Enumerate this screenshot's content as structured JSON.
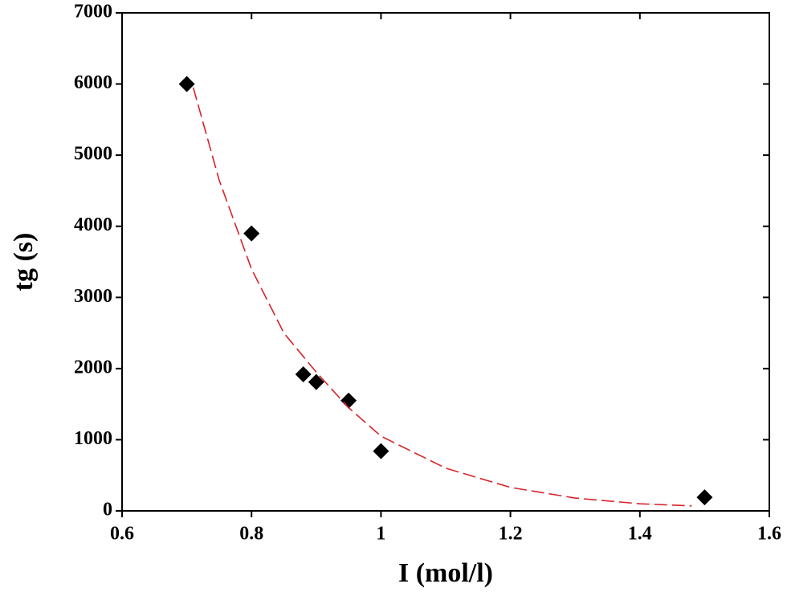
{
  "chart_data": {
    "type": "scatter",
    "xlabel": "I (mol/l)",
    "ylabel": "tg (s)",
    "xlim": [
      0.6,
      1.6
    ],
    "ylim": [
      0,
      7000
    ],
    "xticks": [
      0.6,
      0.8,
      1,
      1.2,
      1.4,
      1.6
    ],
    "yticks": [
      0,
      1000,
      2000,
      3000,
      4000,
      5000,
      6000,
      7000
    ],
    "series": [
      {
        "style": "diamond",
        "color": "#000000",
        "x": [
          0.7,
          0.8,
          0.88,
          0.9,
          0.95,
          1.0,
          1.5
        ],
        "values": [
          6000,
          3900,
          1920,
          1810,
          1550,
          840,
          190
        ]
      },
      {
        "style": "dashed",
        "color": "#d8232a",
        "x": [
          0.71,
          0.75,
          0.8,
          0.85,
          0.9,
          0.95,
          1.0,
          1.1,
          1.2,
          1.3,
          1.4,
          1.48
        ],
        "values": [
          5950,
          4650,
          3400,
          2500,
          1950,
          1450,
          1050,
          600,
          330,
          180,
          100,
          70
        ]
      }
    ]
  }
}
